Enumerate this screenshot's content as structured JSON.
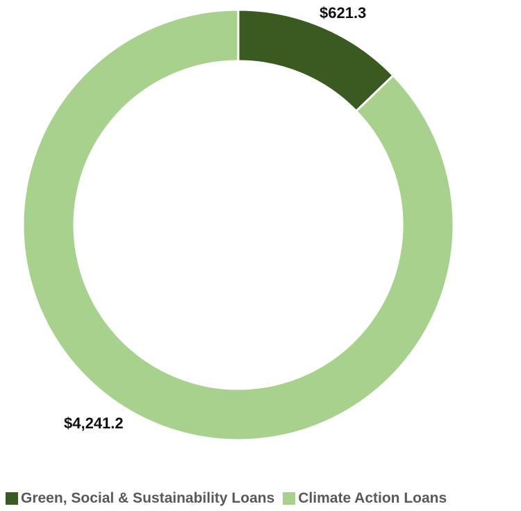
{
  "chart_data": {
    "type": "pie",
    "variant": "donut",
    "categories": [
      "Green, Social & Sustainability Loans",
      "Climate Action Loans"
    ],
    "values": [
      621.3,
      4241.2
    ],
    "data_labels": [
      "$621.3",
      "$4,241.2"
    ],
    "colors": [
      "#3B5A22",
      "#A9D18E"
    ],
    "legend_position": "bottom",
    "title": ""
  }
}
